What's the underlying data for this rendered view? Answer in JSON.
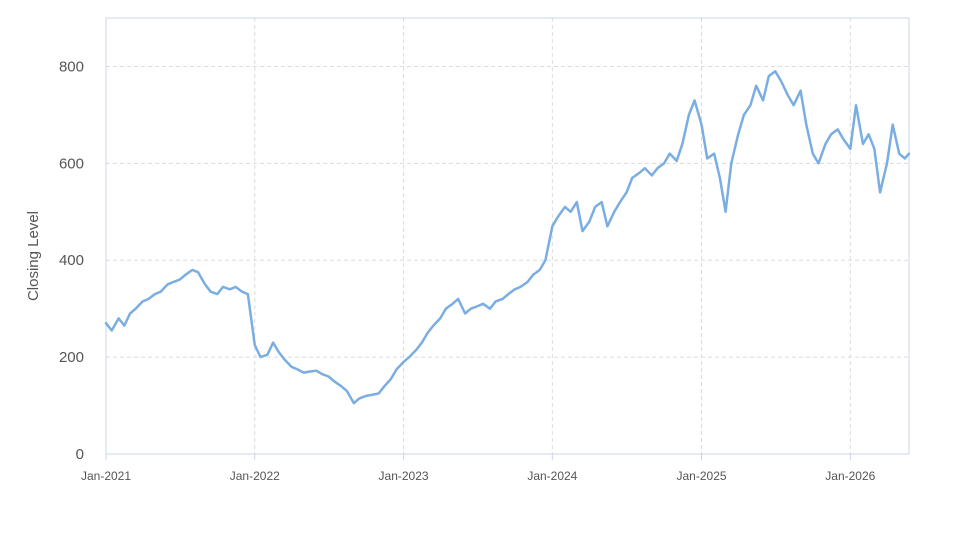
{
  "chart_data": {
    "type": "line",
    "title": "",
    "xlabel": "",
    "ylabel": "Closing Level",
    "xlim": [
      "2021-01-01",
      "2026-05-25"
    ],
    "ylim": [
      0,
      900
    ],
    "x_ticks": [
      {
        "date": "2021-01-01",
        "label": "Jan-2021"
      },
      {
        "date": "2022-01-01",
        "label": "Jan-2022"
      },
      {
        "date": "2023-01-01",
        "label": "Jan-2023"
      },
      {
        "date": "2024-01-01",
        "label": "Jan-2024"
      },
      {
        "date": "2025-01-01",
        "label": "Jan-2025"
      },
      {
        "date": "2026-01-01",
        "label": "Jan-2026"
      }
    ],
    "y_ticks": [
      0,
      200,
      400,
      600,
      800
    ],
    "grid": true,
    "grid_style": "dashed",
    "legend": "none",
    "line_color": "#7aaee3",
    "series": [
      {
        "x": [
          "2021-01-01",
          "2021-01-15",
          "2021-02-01",
          "2021-02-15",
          "2021-03-01",
          "2021-03-15",
          "2021-04-01",
          "2021-04-15",
          "2021-05-01",
          "2021-05-15",
          "2021-06-01",
          "2021-06-15",
          "2021-07-01",
          "2021-07-15",
          "2021-08-01",
          "2021-08-15",
          "2021-09-01",
          "2021-09-15",
          "2021-10-01",
          "2021-10-15",
          "2021-11-01",
          "2021-11-15",
          "2021-12-01",
          "2021-12-15",
          "2022-01-01",
          "2022-01-15",
          "2022-02-01",
          "2022-02-15",
          "2022-03-01",
          "2022-03-15",
          "2022-04-01",
          "2022-04-15",
          "2022-05-01",
          "2022-05-15",
          "2022-06-01",
          "2022-06-15",
          "2022-07-01",
          "2022-07-15",
          "2022-08-01",
          "2022-08-15",
          "2022-09-01",
          "2022-09-15",
          "2022-10-01",
          "2022-10-15",
          "2022-11-01",
          "2022-11-15",
          "2022-12-01",
          "2022-12-15",
          "2023-01-01",
          "2023-01-15",
          "2023-02-01",
          "2023-02-15",
          "2023-03-01",
          "2023-03-15",
          "2023-04-01",
          "2023-04-15",
          "2023-05-01",
          "2023-05-15",
          "2023-06-01",
          "2023-06-15",
          "2023-07-01",
          "2023-07-15",
          "2023-08-01",
          "2023-08-15",
          "2023-09-01",
          "2023-09-15",
          "2023-10-01",
          "2023-10-15",
          "2023-11-01",
          "2023-11-15",
          "2023-12-01",
          "2023-12-15",
          "2024-01-01",
          "2024-01-15",
          "2024-02-01",
          "2024-02-15",
          "2024-03-01",
          "2024-03-15",
          "2024-04-01",
          "2024-04-15",
          "2024-05-01",
          "2024-05-15",
          "2024-06-01",
          "2024-06-15",
          "2024-07-01",
          "2024-07-15",
          "2024-08-01",
          "2024-08-15",
          "2024-09-01",
          "2024-09-15",
          "2024-10-01",
          "2024-10-15",
          "2024-11-01",
          "2024-11-15",
          "2024-12-01",
          "2024-12-15",
          "2025-01-01",
          "2025-01-15",
          "2025-02-01",
          "2025-02-15",
          "2025-03-01",
          "2025-03-15",
          "2025-04-01",
          "2025-04-15",
          "2025-05-01",
          "2025-05-15",
          "2025-06-01",
          "2025-06-15",
          "2025-07-01",
          "2025-07-15",
          "2025-08-01",
          "2025-08-15",
          "2025-09-01",
          "2025-09-15",
          "2025-10-01",
          "2025-10-15",
          "2025-11-01",
          "2025-11-15",
          "2025-12-01",
          "2025-12-15",
          "2026-01-01",
          "2026-01-15",
          "2026-02-01",
          "2026-02-15",
          "2026-03-01",
          "2026-03-15",
          "2026-04-01",
          "2026-04-15",
          "2026-05-01",
          "2026-05-15",
          "2026-05-25"
        ],
        "values": [
          270,
          255,
          280,
          265,
          290,
          300,
          315,
          320,
          330,
          335,
          350,
          355,
          360,
          370,
          380,
          375,
          350,
          335,
          330,
          345,
          340,
          345,
          335,
          330,
          225,
          200,
          205,
          230,
          210,
          195,
          180,
          175,
          168,
          170,
          172,
          165,
          160,
          150,
          140,
          130,
          105,
          115,
          120,
          122,
          125,
          140,
          155,
          175,
          190,
          200,
          215,
          230,
          250,
          265,
          280,
          300,
          310,
          320,
          290,
          300,
          305,
          310,
          300,
          315,
          320,
          330,
          340,
          345,
          355,
          370,
          380,
          400,
          470,
          490,
          510,
          500,
          520,
          460,
          480,
          510,
          520,
          470,
          500,
          520,
          540,
          570,
          580,
          590,
          575,
          590,
          600,
          620,
          605,
          640,
          700,
          730,
          680,
          610,
          620,
          570,
          500,
          600,
          660,
          700,
          720,
          760,
          730,
          780,
          790,
          770,
          740,
          720,
          750,
          680,
          620,
          600,
          640,
          660,
          670,
          650,
          630,
          720,
          640,
          660,
          630,
          540,
          600,
          680,
          620,
          610,
          620
        ]
      }
    ]
  }
}
